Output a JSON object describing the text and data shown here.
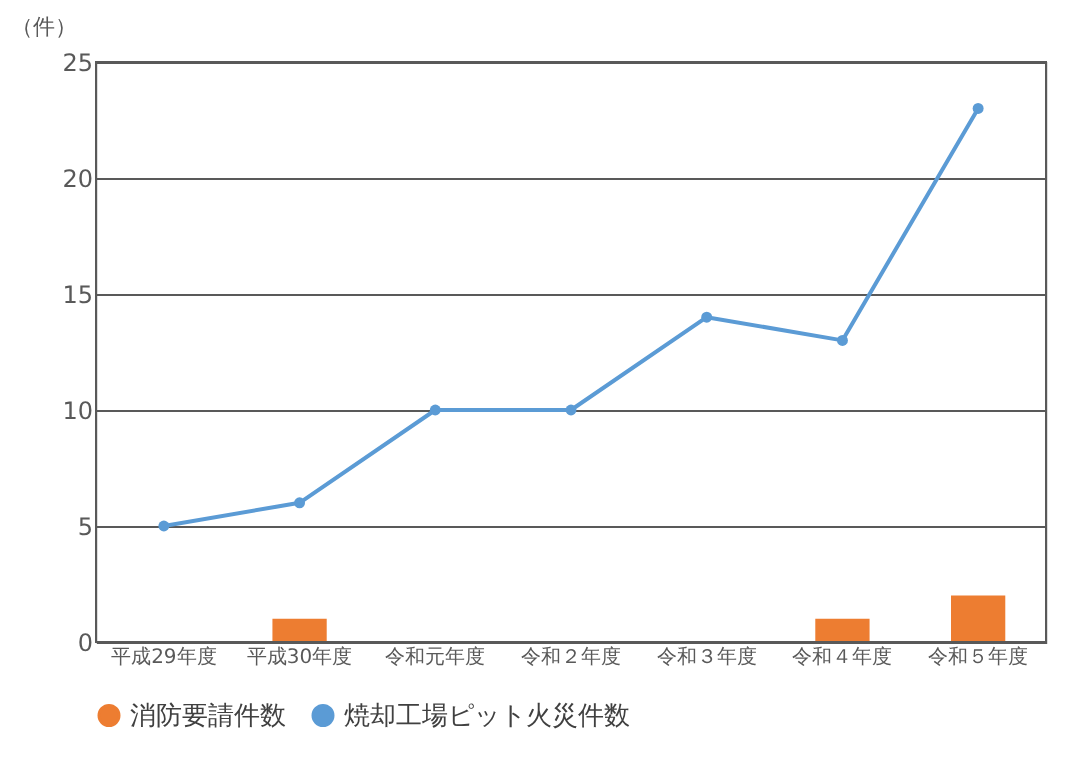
{
  "chart_data": {
    "type": "bar",
    "ylabel": "（件）",
    "categories": [
      "平成29年度",
      "平成30年度",
      "令和元年度",
      "令和２年度",
      "令和３年度",
      "令和４年度",
      "令和５年度"
    ],
    "series": [
      {
        "name": "消防要請件数",
        "color": "#ed7d31",
        "values": [
          0,
          1,
          0,
          0,
          0,
          1,
          2
        ]
      },
      {
        "name": "焼却工場ピット火災件数",
        "color": "#5b9bd5",
        "type": "line",
        "values": [
          5,
          6,
          10,
          10,
          14,
          13,
          23
        ]
      }
    ],
    "ylim": [
      0,
      25
    ],
    "yticks": [
      0,
      5,
      10,
      15,
      20,
      25
    ],
    "grid": "y",
    "legend": "bottom",
    "marker": "circle",
    "line_style": "solid"
  }
}
